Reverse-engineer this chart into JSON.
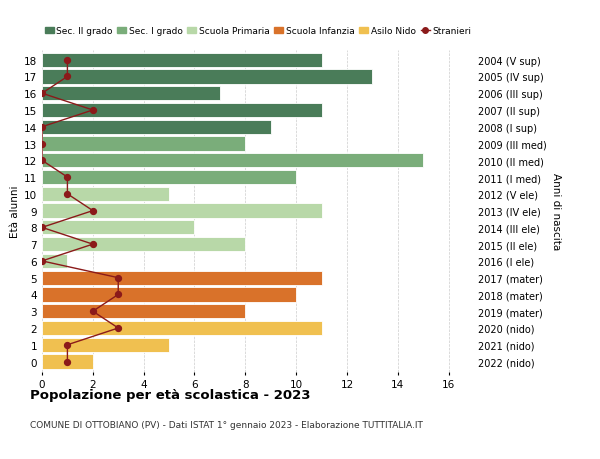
{
  "ages": [
    18,
    17,
    16,
    15,
    14,
    13,
    12,
    11,
    10,
    9,
    8,
    7,
    6,
    5,
    4,
    3,
    2,
    1,
    0
  ],
  "anni_nascita": [
    "2004 (V sup)",
    "2005 (IV sup)",
    "2006 (III sup)",
    "2007 (II sup)",
    "2008 (I sup)",
    "2009 (III med)",
    "2010 (II med)",
    "2011 (I med)",
    "2012 (V ele)",
    "2013 (IV ele)",
    "2014 (III ele)",
    "2015 (II ele)",
    "2016 (I ele)",
    "2017 (mater)",
    "2018 (mater)",
    "2019 (mater)",
    "2020 (nido)",
    "2021 (nido)",
    "2022 (nido)"
  ],
  "bar_values": [
    11,
    13,
    7,
    11,
    9,
    8,
    15,
    10,
    5,
    11,
    6,
    8,
    1,
    11,
    10,
    8,
    11,
    5,
    2
  ],
  "bar_colors": [
    "#4a7c59",
    "#4a7c59",
    "#4a7c59",
    "#4a7c59",
    "#4a7c59",
    "#7aad7a",
    "#7aad7a",
    "#7aad7a",
    "#b8d8a8",
    "#b8d8a8",
    "#b8d8a8",
    "#b8d8a8",
    "#b8d8a8",
    "#d9722a",
    "#d9722a",
    "#d9722a",
    "#f0c050",
    "#f0c050",
    "#f0c050"
  ],
  "stranieri_values": [
    1,
    1,
    0,
    2,
    0,
    0,
    0,
    1,
    1,
    2,
    0,
    2,
    0,
    3,
    3,
    2,
    3,
    1,
    1
  ],
  "stranieri_color": "#8b1a1a",
  "legend_labels": [
    "Sec. II grado",
    "Sec. I grado",
    "Scuola Primaria",
    "Scuola Infanzia",
    "Asilo Nido",
    "Stranieri"
  ],
  "legend_colors": [
    "#4a7c59",
    "#7aad7a",
    "#b8d8a8",
    "#d9722a",
    "#f0c050",
    "#8b1a1a"
  ],
  "title": "Popolazione per età scolastica - 2023",
  "subtitle": "COMUNE DI OTTOBIANO (PV) - Dati ISTAT 1° gennaio 2023 - Elaborazione TUTTITALIA.IT",
  "ylabel_left": "Età alunni",
  "ylabel_right": "Anni di nascita",
  "xlim": [
    0,
    17
  ],
  "background_color": "#ffffff",
  "grid_color": "#cccccc"
}
